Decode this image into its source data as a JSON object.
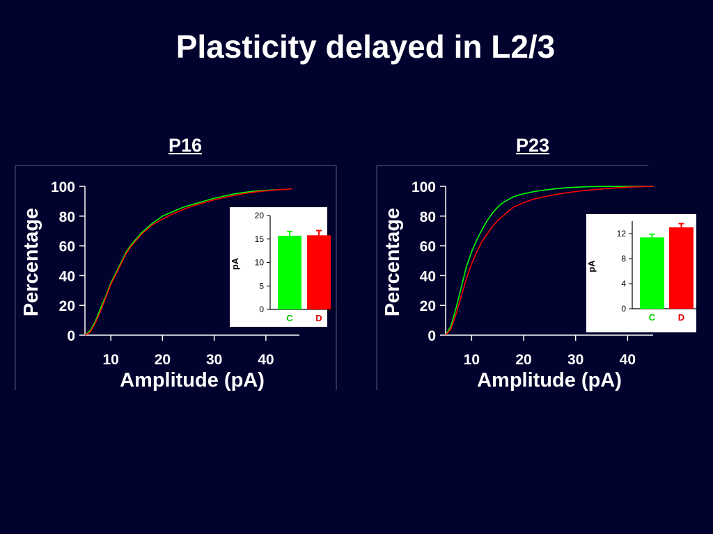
{
  "slide_title": "Plasticity delayed in L2/3",
  "colors": {
    "background": "#02022e",
    "control": "#00ff00",
    "deprived": "#ff0000",
    "text": "#ffffff"
  },
  "chart_data": [
    {
      "type": "line",
      "panel": "P16",
      "title": "P16",
      "xlabel": "Amplitude (pA)",
      "ylabel": "Percentage",
      "xlim": [
        5,
        45
      ],
      "ylim": [
        0,
        100
      ],
      "xticks": [
        "10",
        "20",
        "30",
        "40"
      ],
      "yticks": [
        "0",
        "20",
        "40",
        "60",
        "80",
        "100"
      ],
      "series": [
        {
          "color": "#00ff00",
          "x": [
            5,
            6,
            7,
            8,
            9,
            10,
            11,
            12,
            13,
            14,
            15,
            16,
            18,
            20,
            22,
            24,
            26,
            28,
            30,
            32,
            34,
            36,
            38,
            40,
            42,
            44,
            45
          ],
          "y": [
            0,
            3,
            9,
            18,
            26,
            35,
            42,
            49,
            56,
            61,
            65,
            69,
            75,
            80,
            83,
            86,
            88,
            90,
            92,
            93.5,
            95,
            96,
            96.8,
            97.3,
            97.7,
            98,
            98.3
          ]
        },
        {
          "color": "#ff0000",
          "x": [
            5,
            6,
            7,
            8,
            9,
            10,
            11,
            12,
            13,
            14,
            15,
            16,
            18,
            20,
            22,
            24,
            26,
            28,
            30,
            32,
            34,
            36,
            38,
            40,
            42,
            44,
            45
          ],
          "y": [
            0,
            2,
            8,
            16,
            25,
            34,
            41,
            48,
            55,
            60,
            64,
            68,
            74,
            78,
            81.5,
            84.5,
            87,
            89,
            91,
            92.5,
            94,
            95.3,
            96.2,
            97,
            97.6,
            98,
            98.3
          ]
        }
      ]
    },
    {
      "type": "bar",
      "panel": "P16-inset",
      "ylabel": "pA",
      "ylim": [
        0,
        20
      ],
      "yticks": [
        "0",
        "5",
        "10",
        "15",
        "20"
      ],
      "categories": [
        "C",
        "D"
      ],
      "values": [
        15.7,
        15.8
      ],
      "errors": [
        0.9,
        1.0
      ],
      "bar_colors": [
        "#00ff00",
        "#ff0000"
      ]
    },
    {
      "type": "line",
      "panel": "P23",
      "title": "P23",
      "xlabel": "Amplitude (pA)",
      "ylabel": "Percentage",
      "xlim": [
        5,
        45
      ],
      "ylim": [
        0,
        100
      ],
      "xticks": [
        "10",
        "20",
        "30",
        "40"
      ],
      "yticks": [
        "0",
        "20",
        "40",
        "60",
        "80",
        "100"
      ],
      "series": [
        {
          "color": "#00ff00",
          "x": [
            5,
            6,
            7,
            8,
            9,
            10,
            11,
            12,
            13,
            14,
            15,
            16,
            17,
            18,
            20,
            22,
            24,
            26,
            28,
            30,
            32,
            36,
            40,
            45
          ],
          "y": [
            0,
            6,
            18,
            32,
            46,
            56,
            64,
            71,
            77,
            82,
            86,
            89,
            91,
            93,
            95,
            96.5,
            97.5,
            98.3,
            99,
            99.4,
            99.7,
            99.9,
            100,
            100
          ]
        },
        {
          "color": "#ff0000",
          "x": [
            5,
            6,
            7,
            8,
            9,
            10,
            11,
            12,
            13,
            14,
            15,
            16,
            17,
            18,
            20,
            22,
            24,
            26,
            28,
            30,
            32,
            36,
            40,
            45
          ],
          "y": [
            0,
            4,
            14,
            26,
            38,
            48,
            56,
            63,
            68,
            73,
            77,
            80,
            83,
            86,
            89,
            91.5,
            93,
            94.5,
            95.5,
            96.5,
            97.3,
            98.5,
            99.5,
            100
          ]
        }
      ]
    },
    {
      "type": "bar",
      "panel": "P23-inset",
      "ylabel": "pA",
      "ylim": [
        0,
        14
      ],
      "yticks": [
        "0",
        "4",
        "8",
        "12"
      ],
      "categories": [
        "C",
        "D"
      ],
      "values": [
        11.4,
        13.0
      ],
      "errors": [
        0.5,
        0.6
      ],
      "bar_colors": [
        "#00ff00",
        "#ff0000"
      ]
    }
  ]
}
